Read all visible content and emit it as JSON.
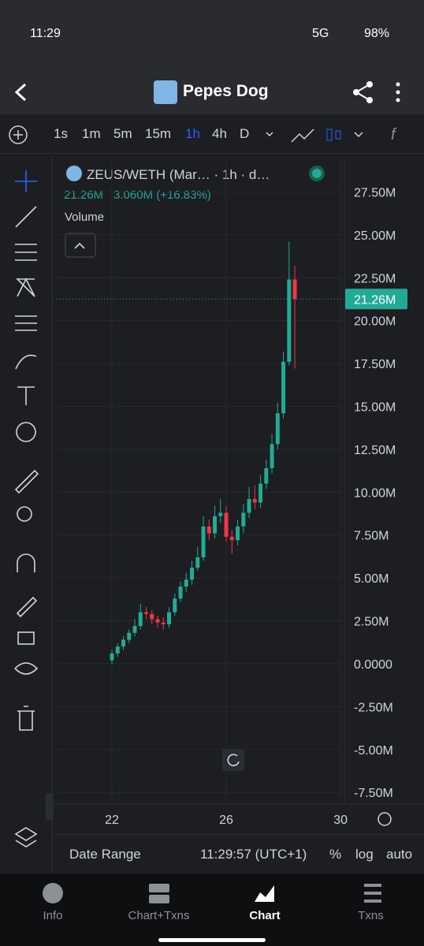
{
  "status_bar": {
    "time": "11:29",
    "network": "5G",
    "battery": "98%"
  },
  "header": {
    "title": "Pepes Dog"
  },
  "intervals": [
    "1s",
    "1m",
    "5m",
    "15m",
    "1h",
    "4h",
    "D"
  ],
  "active_interval_index": 4,
  "chart_data": {
    "type": "candlestick",
    "symbol_label": "ZEUS/WETH (Mar… · 1h · d…",
    "last_price_text": "21.26M",
    "change_text": "3.060M (+16.83%)",
    "volume_label": "Volume",
    "x": [
      22.0,
      22.2,
      22.4,
      22.6,
      22.8,
      23.0,
      23.2,
      23.4,
      23.6,
      23.8,
      24.0,
      24.2,
      24.4,
      24.6,
      24.8,
      25.0,
      25.2,
      25.4,
      25.6,
      25.8,
      26.0,
      26.2,
      26.4,
      26.6,
      26.8,
      27.0,
      27.2,
      27.4,
      27.6,
      27.8,
      28.0,
      28.2,
      28.4
    ],
    "open": [
      0.2,
      0.6,
      1.0,
      1.4,
      1.8,
      2.2,
      3.0,
      2.9,
      2.6,
      2.4,
      2.3,
      3.0,
      3.8,
      4.5,
      4.9,
      5.6,
      6.2,
      8.0,
      7.6,
      8.6,
      8.8,
      7.4,
      7.2,
      8.0,
      8.8,
      9.6,
      9.4,
      10.5,
      11.4,
      12.8,
      14.6,
      17.6,
      22.4
    ],
    "high": [
      0.8,
      1.2,
      1.6,
      2.0,
      2.6,
      3.5,
      3.3,
      3.1,
      2.8,
      2.7,
      3.3,
      4.1,
      4.8,
      5.3,
      6.0,
      6.8,
      8.6,
      8.4,
      9.2,
      9.6,
      9.2,
      7.8,
      8.4,
      9.3,
      10.3,
      10.4,
      11.0,
      11.9,
      13.4,
      15.2,
      18.2,
      24.6,
      23.2
    ],
    "low": [
      0.0,
      0.4,
      0.8,
      1.2,
      1.6,
      2.0,
      2.6,
      2.3,
      2.1,
      2.0,
      2.1,
      2.8,
      3.6,
      4.2,
      4.6,
      5.4,
      6.0,
      7.2,
      7.3,
      8.2,
      7.1,
      6.4,
      6.9,
      7.6,
      8.5,
      9.0,
      9.1,
      10.2,
      11.1,
      12.5,
      14.3,
      17.4,
      17.2
    ],
    "close": [
      0.6,
      1.0,
      1.4,
      1.8,
      2.2,
      3.0,
      2.9,
      2.6,
      2.4,
      2.3,
      3.0,
      3.8,
      4.5,
      4.9,
      5.6,
      6.2,
      8.0,
      7.6,
      8.6,
      8.8,
      7.4,
      7.2,
      8.0,
      8.8,
      9.6,
      9.4,
      10.5,
      11.4,
      12.8,
      14.6,
      17.6,
      22.4,
      21.26
    ],
    "xlim": [
      20.07,
      30.08
    ],
    "xticks": [
      22,
      26,
      30
    ],
    "ylim": [
      -8.09,
      29.5
    ],
    "yticks": [
      {
        "value": 27.5,
        "label": "27.50M"
      },
      {
        "value": 25,
        "label": "25.00M"
      },
      {
        "value": 22.5,
        "label": "22.50M"
      },
      {
        "value": 20,
        "label": "20.00M"
      },
      {
        "value": 17.5,
        "label": "17.50M"
      },
      {
        "value": 15,
        "label": "15.00M"
      },
      {
        "value": 12.5,
        "label": "12.50M"
      },
      {
        "value": 10,
        "label": "10.00M"
      },
      {
        "value": 7.5,
        "label": "7.50M"
      },
      {
        "value": 5,
        "label": "5.00M"
      },
      {
        "value": 2.5,
        "label": "2.50M"
      },
      {
        "value": 0,
        "label": "0.0000"
      },
      {
        "value": -2.5,
        "label": "-2.50M"
      },
      {
        "value": -5,
        "label": "-5.00M"
      },
      {
        "value": -7.5,
        "label": "-7.50M"
      }
    ],
    "last": {
      "value": 21.26,
      "label": "21.26M"
    },
    "up_color": "#22ab94",
    "down_color": "#f23645",
    "grid": true
  },
  "footer": {
    "date_range": "Date Range",
    "time": "11:29:57 (UTC+1)",
    "percent": "%",
    "log": "log",
    "auto": "auto"
  },
  "nav": [
    "Info",
    "Chart+Txns",
    "Chart",
    "Txns"
  ],
  "active_nav_index": 2
}
